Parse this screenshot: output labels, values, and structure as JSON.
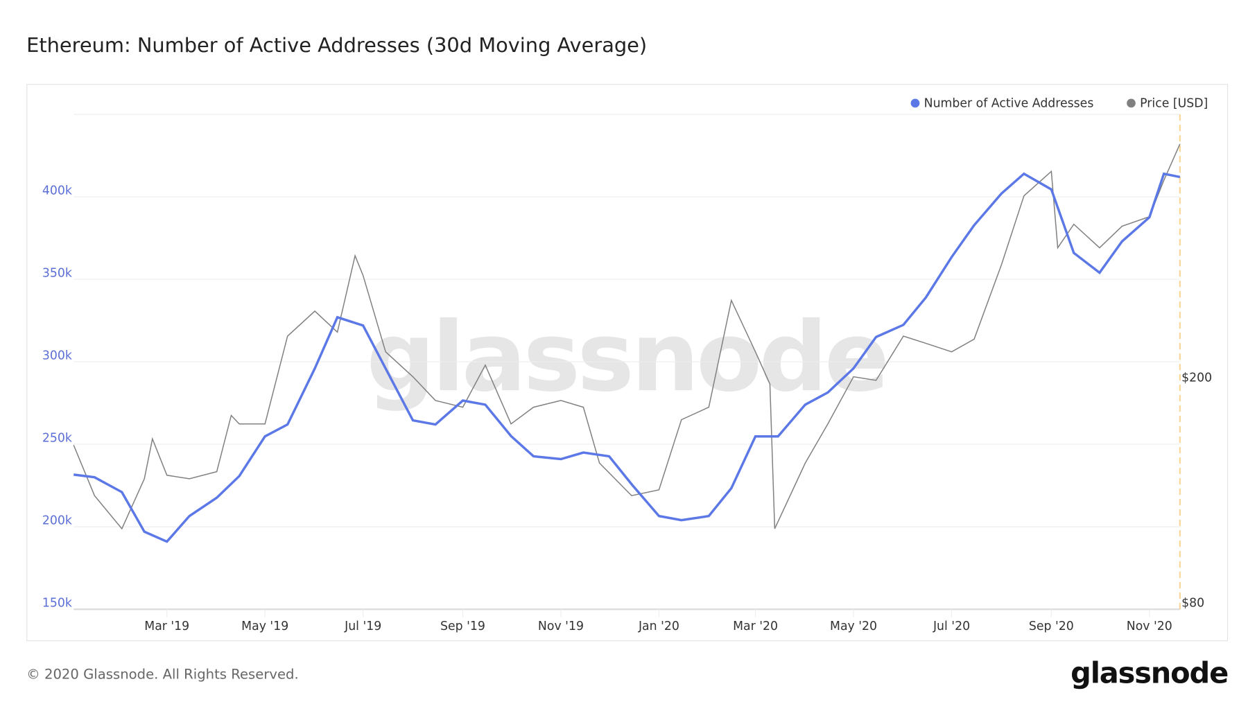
{
  "header": {
    "title": "Ethereum: Number of Active Addresses (30d Moving Average)"
  },
  "footer": {
    "copyright": "© 2020 Glassnode. All Rights Reserved.",
    "logo": "glassnode"
  },
  "watermark": "glassnode",
  "colors": {
    "addresses": "#5b78e6",
    "price": "#808080",
    "marker": "#f7c873",
    "grid": "#eeeeee"
  },
  "chart_data": {
    "type": "line",
    "title": "Ethereum: Number of Active Addresses (30d Moving Average)",
    "legend_placement": "top-right",
    "grid": true,
    "x_range": [
      "2019-01-02",
      "2020-11-20"
    ],
    "x_ticks": [
      "Mar '19",
      "May '19",
      "Jul '19",
      "Sep '19",
      "Nov '19",
      "Jan '20",
      "Mar '20",
      "May '20",
      "Jul '20",
      "Sep '20",
      "Nov '20"
    ],
    "x_tick_dates": [
      "2019-03-01",
      "2019-05-01",
      "2019-07-01",
      "2019-09-01",
      "2019-11-01",
      "2020-01-01",
      "2020-03-01",
      "2020-05-01",
      "2020-07-01",
      "2020-09-01",
      "2020-11-01"
    ],
    "y_left": {
      "scale": "linear",
      "range": [
        150000,
        450000
      ],
      "ticks": [
        150000,
        200000,
        250000,
        300000,
        350000,
        400000
      ],
      "tick_labels": [
        "150k",
        "200k",
        "250k",
        "300k",
        "350k",
        "400k"
      ]
    },
    "y_right": {
      "scale": "log",
      "range": [
        80,
        600
      ],
      "ticks": [
        80,
        200
      ],
      "tick_labels": [
        "$80",
        "$200"
      ]
    },
    "series": [
      {
        "name": "Number of Active Addresses",
        "axis": "left",
        "points": [
          [
            "2019-01-02",
            231600
          ],
          [
            "2019-01-15",
            230000
          ],
          [
            "2019-02-01",
            221000
          ],
          [
            "2019-02-15",
            197000
          ],
          [
            "2019-03-01",
            191000
          ],
          [
            "2019-03-15",
            206500
          ],
          [
            "2019-04-01",
            217600
          ],
          [
            "2019-04-15",
            230700
          ],
          [
            "2019-05-01",
            254800
          ],
          [
            "2019-05-15",
            262000
          ],
          [
            "2019-06-01",
            296000
          ],
          [
            "2019-06-15",
            327000
          ],
          [
            "2019-07-01",
            322000
          ],
          [
            "2019-07-15",
            296000
          ],
          [
            "2019-08-01",
            264500
          ],
          [
            "2019-08-15",
            262000
          ],
          [
            "2019-09-01",
            276500
          ],
          [
            "2019-09-15",
            274000
          ],
          [
            "2019-10-01",
            255000
          ],
          [
            "2019-10-15",
            242700
          ],
          [
            "2019-11-01",
            241000
          ],
          [
            "2019-11-15",
            245000
          ],
          [
            "2019-12-01",
            242700
          ],
          [
            "2019-12-15",
            225800
          ],
          [
            "2020-01-01",
            206500
          ],
          [
            "2020-01-15",
            204000
          ],
          [
            "2020-02-01",
            206500
          ],
          [
            "2020-02-15",
            223400
          ],
          [
            "2020-03-01",
            254800
          ],
          [
            "2020-03-15",
            254800
          ],
          [
            "2020-04-01",
            274000
          ],
          [
            "2020-04-15",
            281400
          ],
          [
            "2020-05-01",
            296000
          ],
          [
            "2020-05-15",
            315000
          ],
          [
            "2020-06-01",
            322400
          ],
          [
            "2020-06-15",
            339000
          ],
          [
            "2020-07-01",
            363500
          ],
          [
            "2020-07-15",
            382800
          ],
          [
            "2020-08-01",
            402000
          ],
          [
            "2020-08-15",
            414000
          ],
          [
            "2020-09-01",
            404500
          ],
          [
            "2020-09-15",
            366000
          ],
          [
            "2020-10-01",
            354000
          ],
          [
            "2020-10-15",
            373000
          ],
          [
            "2020-11-01",
            387600
          ],
          [
            "2020-11-10",
            414000
          ],
          [
            "2020-11-20",
            412000
          ]
        ]
      },
      {
        "name": "Price [USD]",
        "axis": "right",
        "points": [
          [
            "2019-01-02",
            156
          ],
          [
            "2019-01-15",
            127
          ],
          [
            "2019-02-01",
            111
          ],
          [
            "2019-02-15",
            136
          ],
          [
            "2019-02-20",
            160
          ],
          [
            "2019-03-01",
            138
          ],
          [
            "2019-03-15",
            136
          ],
          [
            "2019-04-01",
            140
          ],
          [
            "2019-04-10",
            176
          ],
          [
            "2019-04-15",
            170
          ],
          [
            "2019-05-01",
            170
          ],
          [
            "2019-05-15",
            243
          ],
          [
            "2019-06-01",
            269
          ],
          [
            "2019-06-15",
            247
          ],
          [
            "2019-06-26",
            337
          ],
          [
            "2019-07-01",
            311
          ],
          [
            "2019-07-15",
            228
          ],
          [
            "2019-08-01",
            206
          ],
          [
            "2019-08-15",
            187
          ],
          [
            "2019-09-01",
            182
          ],
          [
            "2019-09-15",
            216
          ],
          [
            "2019-10-01",
            170
          ],
          [
            "2019-10-15",
            182
          ],
          [
            "2019-11-01",
            187
          ],
          [
            "2019-11-15",
            182
          ],
          [
            "2019-11-25",
            145
          ],
          [
            "2019-12-15",
            127
          ],
          [
            "2020-01-01",
            130
          ],
          [
            "2020-01-15",
            173
          ],
          [
            "2020-02-01",
            182
          ],
          [
            "2020-02-15",
            281
          ],
          [
            "2020-03-01",
            228
          ],
          [
            "2020-03-10",
            200
          ],
          [
            "2020-03-13",
            111
          ],
          [
            "2020-04-01",
            145
          ],
          [
            "2020-04-15",
            170
          ],
          [
            "2020-05-01",
            206
          ],
          [
            "2020-05-15",
            203
          ],
          [
            "2020-06-01",
            243
          ],
          [
            "2020-06-15",
            236
          ],
          [
            "2020-07-01",
            228
          ],
          [
            "2020-07-15",
            240
          ],
          [
            "2020-08-01",
            325
          ],
          [
            "2020-08-15",
            430
          ],
          [
            "2020-09-01",
            475
          ],
          [
            "2020-09-05",
            348
          ],
          [
            "2020-09-15",
            383
          ],
          [
            "2020-10-01",
            348
          ],
          [
            "2020-10-15",
            380
          ],
          [
            "2020-11-01",
            395
          ],
          [
            "2020-11-10",
            458
          ],
          [
            "2020-11-20",
            531
          ]
        ]
      }
    ]
  }
}
